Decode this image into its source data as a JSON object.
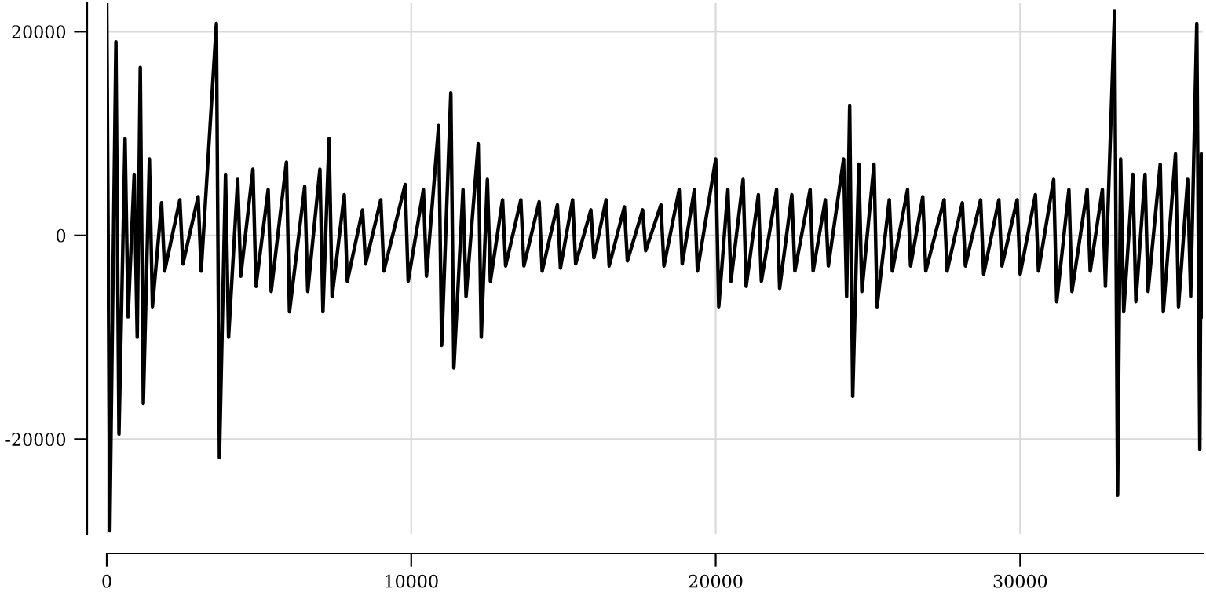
{
  "chart_data": {
    "type": "line",
    "x": [
      0,
      100,
      300,
      400,
      600,
      700,
      900,
      1000,
      1100,
      1200,
      1400,
      1500,
      1800,
      1900,
      2400,
      2500,
      3000,
      3100,
      3600,
      3700,
      3900,
      4000,
      4300,
      4400,
      4800,
      4900,
      5300,
      5400,
      5900,
      6000,
      6500,
      6600,
      7000,
      7100,
      7300,
      7400,
      7800,
      7900,
      8400,
      8500,
      9000,
      9100,
      9800,
      9900,
      10400,
      10500,
      10900,
      11000,
      11300,
      11400,
      11700,
      11800,
      12200,
      12300,
      12500,
      12600,
      13000,
      13100,
      13600,
      13700,
      14200,
      14300,
      14800,
      14900,
      15300,
      15400,
      15900,
      16000,
      16400,
      16500,
      17000,
      17100,
      17600,
      17700,
      18200,
      18300,
      18800,
      18900,
      19300,
      19400,
      20000,
      20100,
      20400,
      20500,
      20900,
      21000,
      21400,
      21500,
      22000,
      22100,
      22500,
      22600,
      23100,
      23200,
      23600,
      23700,
      24200,
      24300,
      24400,
      24500,
      24700,
      24800,
      25200,
      25300,
      25700,
      25800,
      26300,
      26400,
      26800,
      26900,
      27500,
      27600,
      28100,
      28200,
      28700,
      28800,
      29300,
      29400,
      29900,
      30000,
      30500,
      30600,
      31100,
      31200,
      31600,
      31700,
      32200,
      32300,
      32700,
      32800,
      33100,
      33200,
      33300,
      33400,
      33700,
      33800,
      34100,
      34200,
      34600,
      34700,
      35100,
      35200,
      35500,
      35600,
      35800,
      35900,
      35950,
      36000
    ],
    "series": [
      {
        "color": "#000000",
        "values": [
          22800,
          -29000,
          19000,
          -19500,
          9500,
          -8000,
          6000,
          -10000,
          16500,
          -16500,
          7500,
          -7000,
          3200,
          -3500,
          3500,
          -2800,
          3800,
          -3500,
          20800,
          -21800,
          6000,
          -10000,
          5500,
          -4000,
          6500,
          -5000,
          4500,
          -5500,
          7200,
          -7500,
          4800,
          -5500,
          6500,
          -7500,
          9500,
          -6000,
          4000,
          -4500,
          2500,
          -2800,
          3500,
          -3500,
          5000,
          -4500,
          4500,
          -4000,
          10800,
          -10800,
          14000,
          -13000,
          4500,
          -6000,
          9000,
          -10000,
          5500,
          -4500,
          3500,
          -3000,
          3500,
          -3000,
          3300,
          -3500,
          3000,
          -3200,
          3500,
          -2800,
          2500,
          -2200,
          3500,
          -3000,
          2800,
          -2500,
          2500,
          -1500,
          3000,
          -3000,
          4500,
          -2800,
          4500,
          -3500,
          7500,
          -7000,
          4500,
          -4500,
          5500,
          -5000,
          4000,
          -4500,
          4500,
          -5200,
          4000,
          -3500,
          4500,
          -3500,
          3500,
          -3000,
          7500,
          -6000,
          12700,
          -15800,
          7000,
          -5500,
          7000,
          -7000,
          3500,
          -3500,
          4500,
          -3000,
          3800,
          -3500,
          3500,
          -3500,
          3200,
          -3000,
          3500,
          -3800,
          3500,
          -3000,
          3500,
          -3800,
          4000,
          -3500,
          5500,
          -6500,
          4500,
          -5500,
          4500,
          -3500,
          4500,
          -5000,
          22000,
          -25500,
          7500,
          -7500,
          6000,
          -6500,
          6000,
          -5500,
          7000,
          -7500,
          8000,
          -7000,
          5500,
          -6000,
          20800,
          -21000,
          8000,
          -8000
        ]
      }
    ],
    "xlim": [
      0,
      36000
    ],
    "ylim": [
      -29300,
      22800
    ],
    "xticks": [
      0,
      10000,
      20000,
      30000
    ],
    "yticks": [
      -20000,
      0,
      20000
    ],
    "grid": true,
    "line_style": "solid",
    "marker": "none"
  }
}
